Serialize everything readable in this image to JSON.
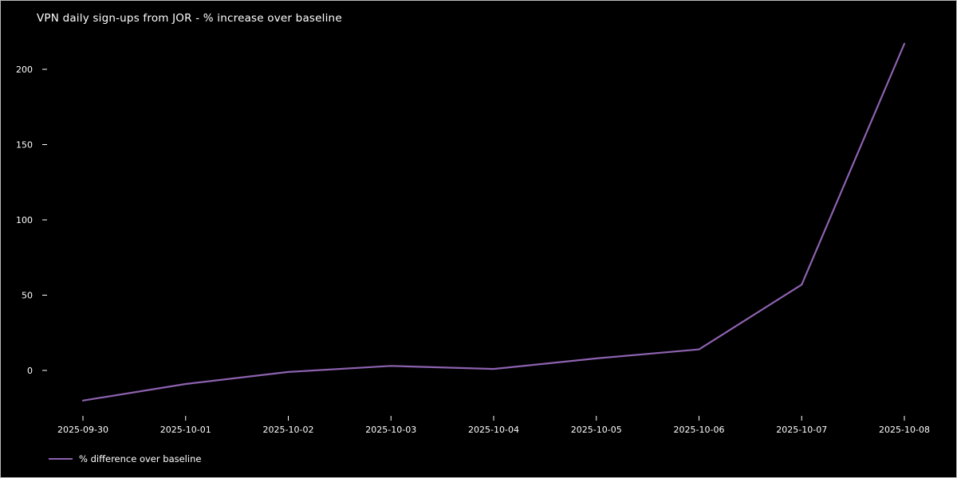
{
  "chart_data": {
    "type": "line",
    "title": "VPN daily sign-ups from JOR - % increase over baseline",
    "x": [
      "2025-09-30",
      "2025-10-01",
      "2025-10-02",
      "2025-10-03",
      "2025-10-04",
      "2025-10-05",
      "2025-10-06",
      "2025-10-07",
      "2025-10-08"
    ],
    "series": [
      {
        "name": "% difference over baseline",
        "color": "#8d62b0",
        "values": [
          -20,
          -9,
          -1,
          3,
          1,
          8,
          14,
          57,
          217
        ]
      }
    ],
    "xlabel": "",
    "ylabel": "",
    "yticks": [
      0,
      50,
      100,
      150,
      200
    ],
    "ylim": [
      -35,
      225
    ],
    "grid": false,
    "legend_position": "lower-left",
    "background_color": "#000000",
    "text_color": "#ffffff"
  }
}
